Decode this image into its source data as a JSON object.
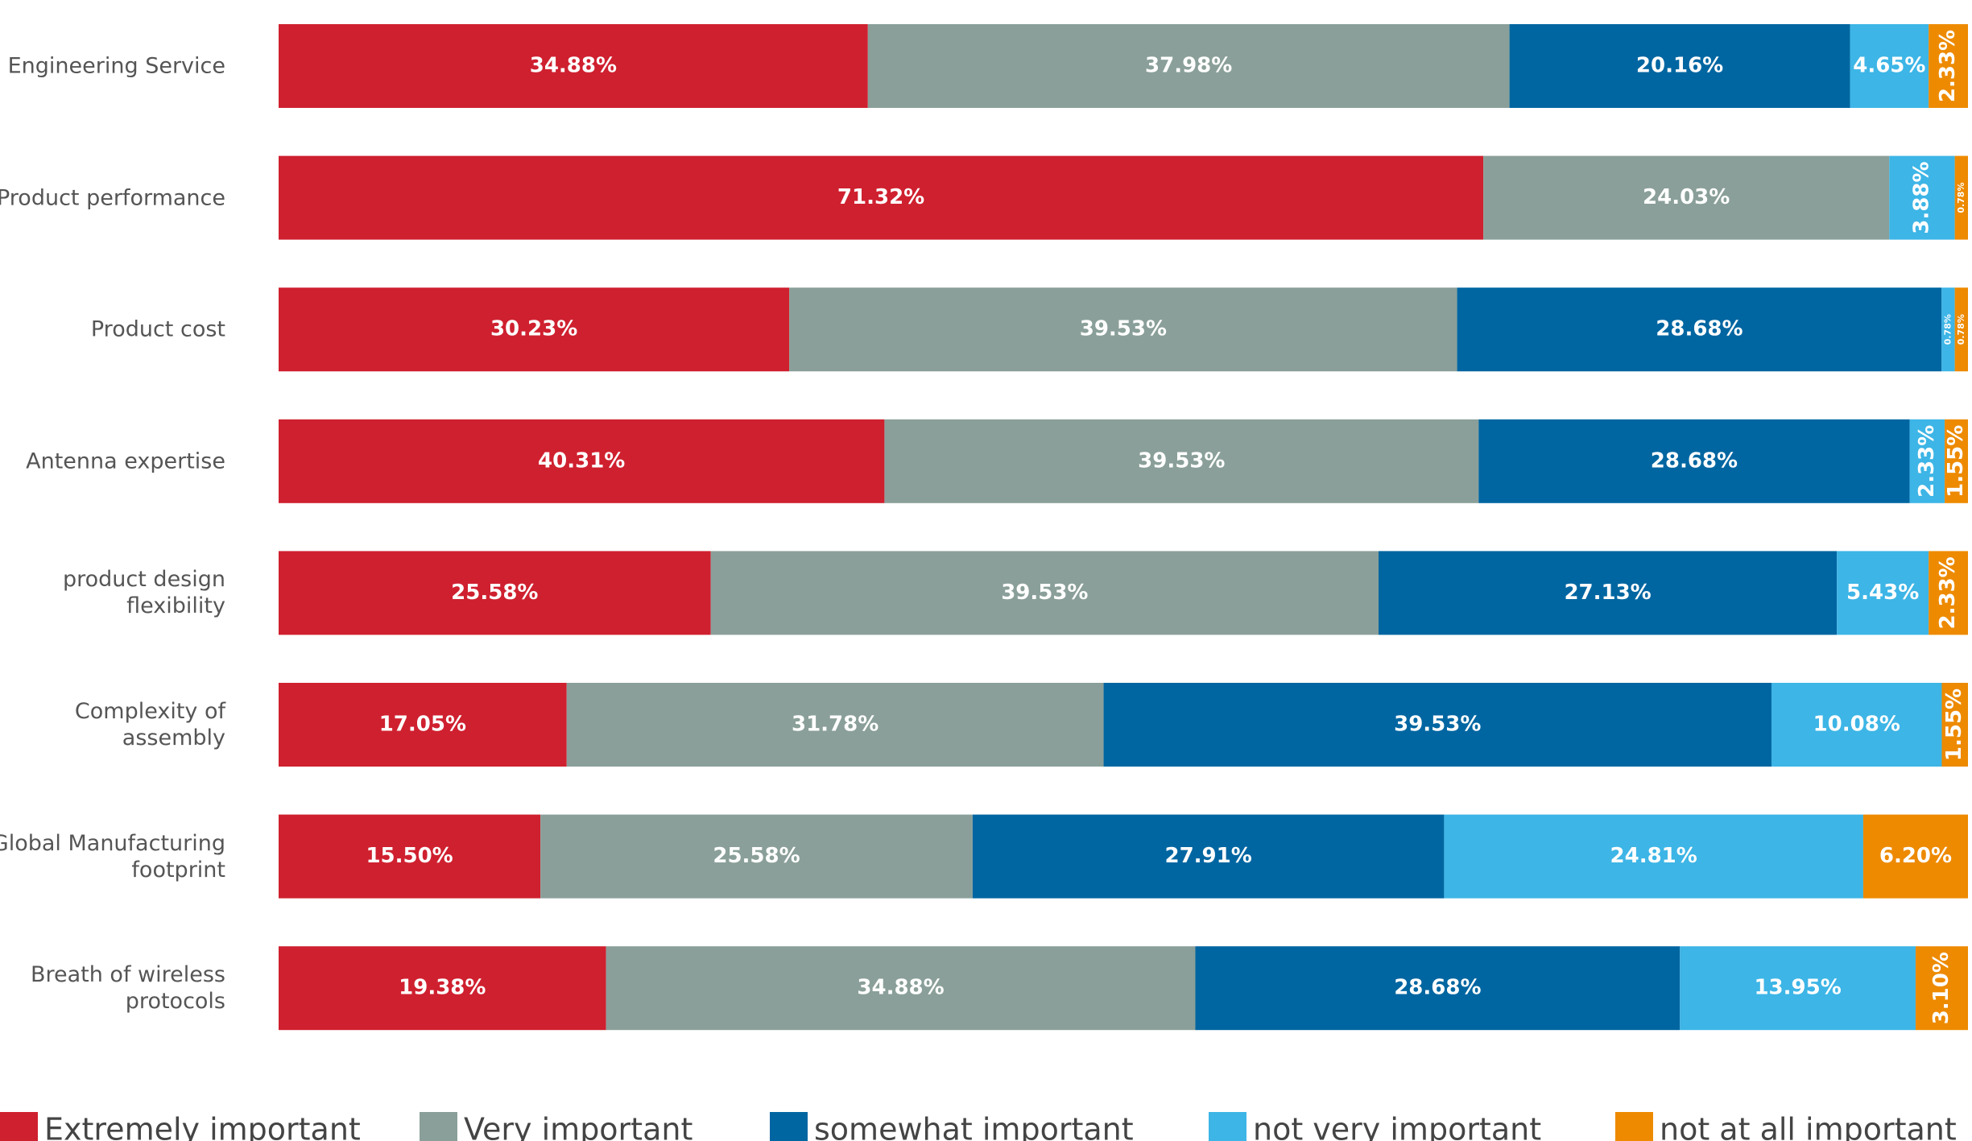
{
  "chart_data": {
    "type": "stacked_bar_horizontal",
    "categories": [
      "Engineering Service",
      "Product performance",
      "Product cost",
      "Antenna expertise",
      "product design flexibility",
      "Complexity of assembly",
      "Global Manufacturing footprint",
      "Breath of wireless protocols"
    ],
    "series": [
      {
        "name": "Extremely important",
        "color": "#cf202f",
        "values": [
          34.88,
          71.32,
          30.23,
          40.31,
          25.58,
          17.05,
          15.5,
          19.38
        ],
        "value_labels": [
          "34.88%",
          "71.32%",
          "30.23%",
          "40.31%",
          "25.58%",
          "17.05%",
          "15.50%",
          "19.38%"
        ]
      },
      {
        "name": "Very important",
        "color": "#8a9f99",
        "values": [
          37.98,
          24.03,
          39.53,
          39.53,
          39.53,
          31.78,
          25.58,
          34.88
        ],
        "value_labels": [
          "37.98%",
          "24.03%",
          "39.53%",
          "39.53%",
          "39.53%",
          "31.78%",
          "25.58%",
          "34.88%"
        ]
      },
      {
        "name": "somewhat important",
        "color": "#0066a1",
        "values": [
          20.16,
          null,
          28.68,
          28.68,
          27.13,
          39.53,
          27.91,
          28.68
        ],
        "value_labels": [
          "20.16%",
          null,
          "28.68%",
          "28.68%",
          "27.13%",
          "39.53%",
          "27.91%",
          "28.68%"
        ]
      },
      {
        "name": "not very important",
        "color": "#3db5e6",
        "values": [
          4.65,
          3.88,
          0.78,
          2.33,
          5.43,
          10.08,
          24.81,
          13.95
        ],
        "value_labels": [
          "4.65%",
          "3.88%",
          "0.78%",
          "2.33%",
          "5.43%",
          "10.08%",
          "24.81%",
          "13.95%"
        ]
      },
      {
        "name": "not at all important",
        "color": "#ed8a00",
        "values": [
          2.33,
          0.78,
          0.78,
          1.55,
          2.33,
          1.55,
          6.2,
          3.1
        ],
        "value_labels": [
          "2.33%",
          "0.78%",
          "0.78%",
          "1.55%",
          "2.33%",
          "1.55%",
          "6.20%",
          "3.10%"
        ]
      }
    ]
  }
}
